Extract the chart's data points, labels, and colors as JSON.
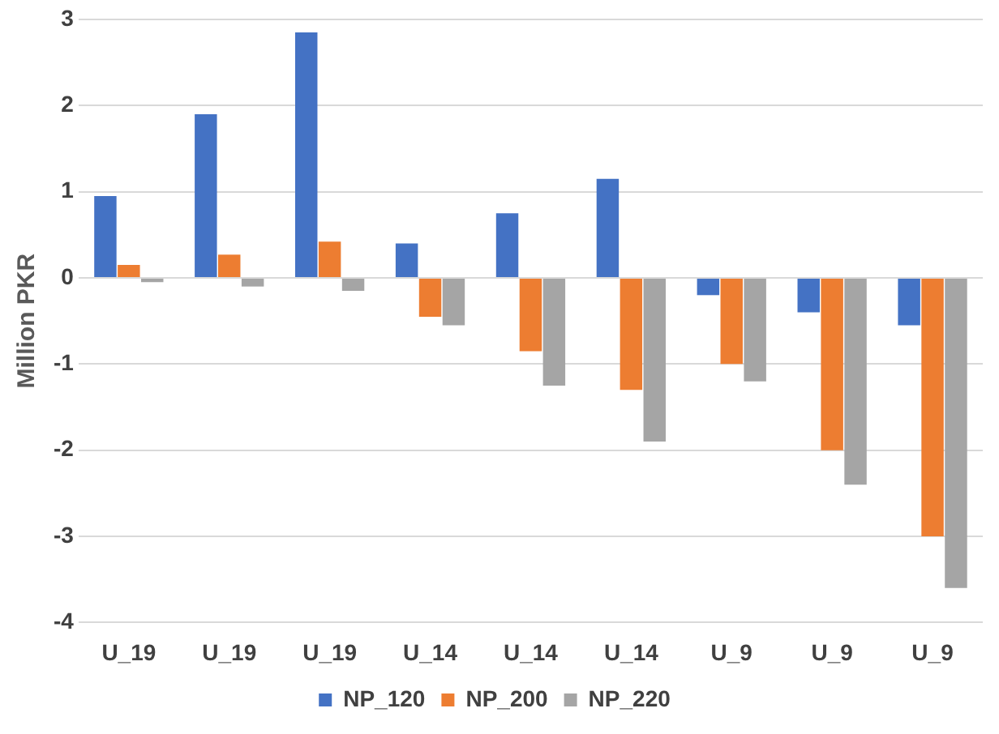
{
  "chart_data": {
    "type": "bar",
    "ylabel": "Million PKR",
    "categories": [
      "U_19",
      "U_19",
      "U_19",
      "U_14",
      "U_14",
      "U_14",
      "U_9",
      "U_9",
      "U_9"
    ],
    "series": [
      {
        "name": "NP_120",
        "color": "#4472c4",
        "values": [
          0.95,
          1.9,
          2.85,
          0.4,
          0.75,
          1.15,
          -0.2,
          -0.4,
          -0.55
        ]
      },
      {
        "name": "NP_200",
        "color": "#ed7d31",
        "values": [
          0.15,
          0.27,
          0.42,
          -0.45,
          -0.85,
          -1.3,
          -1.0,
          -2.0,
          -3.0
        ]
      },
      {
        "name": "NP_220",
        "color": "#a5a5a5",
        "values": [
          -0.05,
          -0.1,
          -0.15,
          -0.55,
          -1.25,
          -1.9,
          -1.2,
          -2.4,
          -3.6
        ]
      }
    ],
    "ylim": [
      -4,
      3
    ],
    "yticks": [
      -4,
      -3,
      -2,
      -1,
      0,
      1,
      2,
      3
    ],
    "grid": "y",
    "legend": "bottom"
  }
}
